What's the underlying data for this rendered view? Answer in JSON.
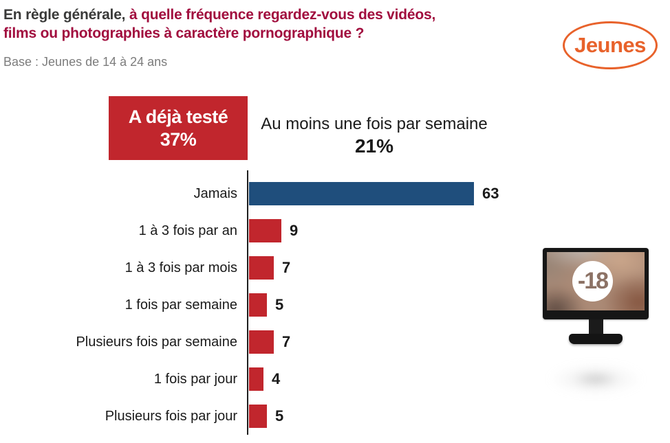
{
  "header": {
    "title_black": "En règle générale, ",
    "title_red_line1": "à quelle fréquence regardez-vous des vidéos,",
    "title_red_line2": "films ou photographies à caractère pornographique ?",
    "base_note": "Base : Jeunes de 14 à 24 ans",
    "badge_label": "Jeunes"
  },
  "callout_tested": {
    "label": "A déjà testé",
    "value": "37%"
  },
  "callout_weekly": {
    "label": "Au moins une fois par semaine",
    "value": "21%"
  },
  "chart_data": {
    "type": "bar",
    "orientation": "horizontal",
    "title": "En règle générale, à quelle fréquence regardez-vous des vidéos, films ou photographies à caractère pornographique ?",
    "subtitle": "Base : Jeunes de 14 à 24 ans",
    "categories": [
      "Jamais",
      "1 à 3 fois par an",
      "1 à 3 fois par mois",
      "1 fois par semaine",
      "Plusieurs fois par semaine",
      "1 fois par jour",
      "Plusieurs fois par jour"
    ],
    "values": [
      63,
      9,
      7,
      5,
      7,
      4,
      5
    ],
    "unit": "%",
    "xlim": [
      0,
      70
    ],
    "grid": false,
    "bar_colors": [
      "#1f4e7c",
      "#c1262d",
      "#c1262d",
      "#c1262d",
      "#c1262d",
      "#c1262d",
      "#c1262d"
    ],
    "annotations": [
      {
        "text": "A déjà testé",
        "value": "37%"
      },
      {
        "text": "Au moins une fois par semaine",
        "value": "21%"
      }
    ]
  },
  "monitor": {
    "overlay_label": "-18"
  },
  "colors": {
    "title_accent": "#a10d3e",
    "bar_red": "#c1262d",
    "bar_blue": "#1f4e7c",
    "badge_orange": "#e8622b",
    "base_gray": "#7c7c7c"
  }
}
